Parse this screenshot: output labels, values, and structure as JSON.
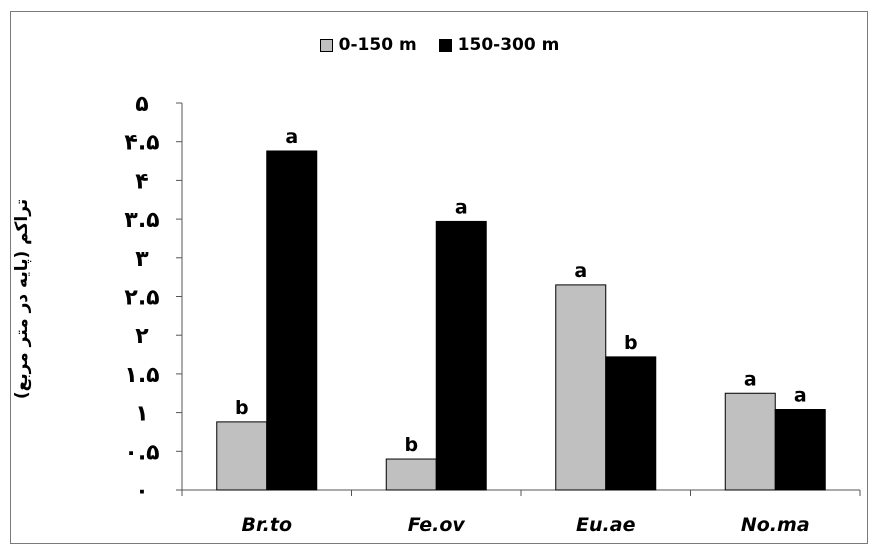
{
  "chart_data": {
    "type": "bar",
    "title": "",
    "xlabel": "",
    "ylabel": "تراکم (پایه در متر مربع)",
    "ylim": [
      0,
      5
    ],
    "yticks": [
      0,
      0.5,
      1,
      1.5,
      2,
      2.5,
      3,
      3.5,
      4,
      4.5,
      5
    ],
    "ytick_labels": [
      "۰",
      "۰.۵",
      "۱",
      "۱.۵",
      "۲",
      "۲.۵",
      "۳",
      "۳.۵",
      "۴",
      "۴.۵",
      "۵"
    ],
    "categories": [
      "Br.to",
      "Fe.ov",
      "Eu.ae",
      "No.ma"
    ],
    "series": [
      {
        "name": "0-150 m",
        "color": "#c0c0c0",
        "values": [
          0.88,
          0.4,
          2.65,
          1.25
        ],
        "labels": [
          "b",
          "b",
          "a",
          "a"
        ]
      },
      {
        "name": "150-300 m",
        "color": "#000000",
        "values": [
          4.38,
          3.47,
          1.72,
          1.04
        ],
        "labels": [
          "a",
          "a",
          "b",
          "a"
        ]
      }
    ],
    "legend_position": "top-center",
    "grid": false
  }
}
